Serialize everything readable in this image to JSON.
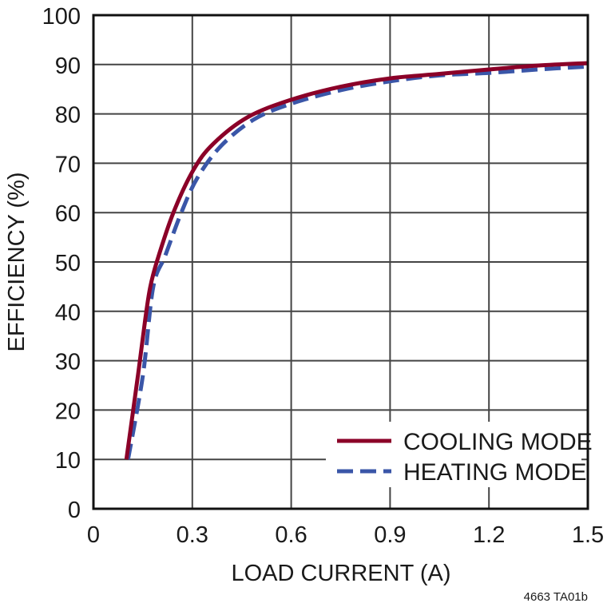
{
  "chart_data": {
    "type": "line",
    "title": "",
    "xlabel": "LOAD CURRENT (A)",
    "ylabel": "EFFICIENCY (%)",
    "xlim": [
      0,
      1.5
    ],
    "ylim": [
      0,
      100
    ],
    "xticks": [
      "0",
      "0.3",
      "0.6",
      "0.9",
      "1.2",
      "1.5"
    ],
    "xtick_values": [
      0,
      0.3,
      0.6,
      0.9,
      1.2,
      1.5
    ],
    "yticks": [
      "0",
      "10",
      "20",
      "30",
      "40",
      "50",
      "60",
      "70",
      "80",
      "90",
      "100"
    ],
    "ytick_values": [
      0,
      10,
      20,
      30,
      40,
      50,
      60,
      70,
      80,
      90,
      100
    ],
    "grid": true,
    "legend_position": "bottom-right",
    "series": [
      {
        "name": "COOLING MODE",
        "color": "#8b0028",
        "style": "solid",
        "x": [
          0.1,
          0.136,
          0.157,
          0.172,
          0.193,
          0.242,
          0.303,
          0.363,
          0.467,
          0.597,
          0.75,
          0.9,
          1.05,
          1.2,
          1.35,
          1.5
        ],
        "y": [
          10,
          27.5,
          38.3,
          44.8,
          50.2,
          59.9,
          68.6,
          73.9,
          79.3,
          82.8,
          85.5,
          87.2,
          88.1,
          89.0,
          89.8,
          90.3
        ]
      },
      {
        "name": "HEATING MODE",
        "color": "#3a56a8",
        "style": "dashed",
        "x": [
          0.105,
          0.15,
          0.181,
          0.218,
          0.266,
          0.315,
          0.387,
          0.485,
          0.597,
          0.75,
          0.9,
          1.05,
          1.2,
          1.35,
          1.5
        ],
        "y": [
          10,
          27,
          44.8,
          51.3,
          59.9,
          67,
          73.5,
          78.8,
          82,
          84.8,
          86.6,
          87.8,
          88.3,
          89.0,
          89.6
        ]
      }
    ],
    "footnote": "4663 TA01b"
  }
}
